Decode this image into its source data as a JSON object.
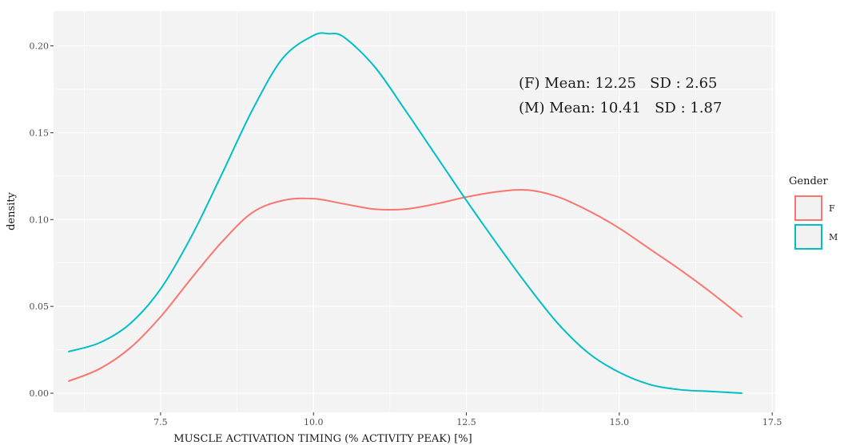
{
  "chart_data": {
    "type": "line",
    "xlabel": "MUSCLE ACTIVATION TIMING (% ACTIVITY PEAK) [%]",
    "ylabel": "density",
    "xlim": [
      5.75,
      17.55
    ],
    "ylim": [
      -0.011,
      0.22
    ],
    "x_ticks": [
      7.5,
      10.0,
      12.5,
      15.0,
      17.5
    ],
    "x_tick_labels": [
      "7.5",
      "10.0",
      "12.5",
      "15.0",
      "17.5"
    ],
    "y_ticks": [
      0.0,
      0.05,
      0.1,
      0.15,
      0.2
    ],
    "y_tick_labels": [
      "0.00",
      "0.05",
      "0.10",
      "0.15",
      "0.20"
    ],
    "grid": true,
    "legend": {
      "title": "Gender",
      "position": "right",
      "entries": [
        {
          "label": "F",
          "color": "#F8766D"
        },
        {
          "label": "M",
          "color": "#00BFC4"
        }
      ]
    },
    "annotations": [
      "(F) Mean: 12.25   SD : 2.65",
      "(M) Mean: 10.41   SD : 1.87"
    ],
    "series": [
      {
        "name": "F",
        "color": "#F8766D",
        "x": [
          6.0,
          6.5,
          7.0,
          7.5,
          8.0,
          8.5,
          9.0,
          9.5,
          10.0,
          10.5,
          11.0,
          11.5,
          12.0,
          12.5,
          13.0,
          13.5,
          14.0,
          14.5,
          15.0,
          15.5,
          16.0,
          16.5,
          17.0
        ],
        "y": [
          0.007,
          0.014,
          0.026,
          0.044,
          0.066,
          0.087,
          0.104,
          0.111,
          0.112,
          0.109,
          0.106,
          0.106,
          0.109,
          0.113,
          0.116,
          0.117,
          0.113,
          0.105,
          0.095,
          0.083,
          0.071,
          0.058,
          0.044
        ]
      },
      {
        "name": "M",
        "color": "#00BFC4",
        "x": [
          6.0,
          6.5,
          7.0,
          7.5,
          8.0,
          8.5,
          9.0,
          9.5,
          10.0,
          10.25,
          10.5,
          11.0,
          11.5,
          12.0,
          12.5,
          13.0,
          13.5,
          14.0,
          14.5,
          15.0,
          15.5,
          16.0,
          16.5,
          17.0
        ],
        "y": [
          0.024,
          0.029,
          0.04,
          0.06,
          0.09,
          0.126,
          0.163,
          0.193,
          0.206,
          0.207,
          0.205,
          0.188,
          0.163,
          0.137,
          0.111,
          0.086,
          0.062,
          0.04,
          0.023,
          0.012,
          0.005,
          0.002,
          0.001,
          0.0
        ]
      }
    ]
  }
}
